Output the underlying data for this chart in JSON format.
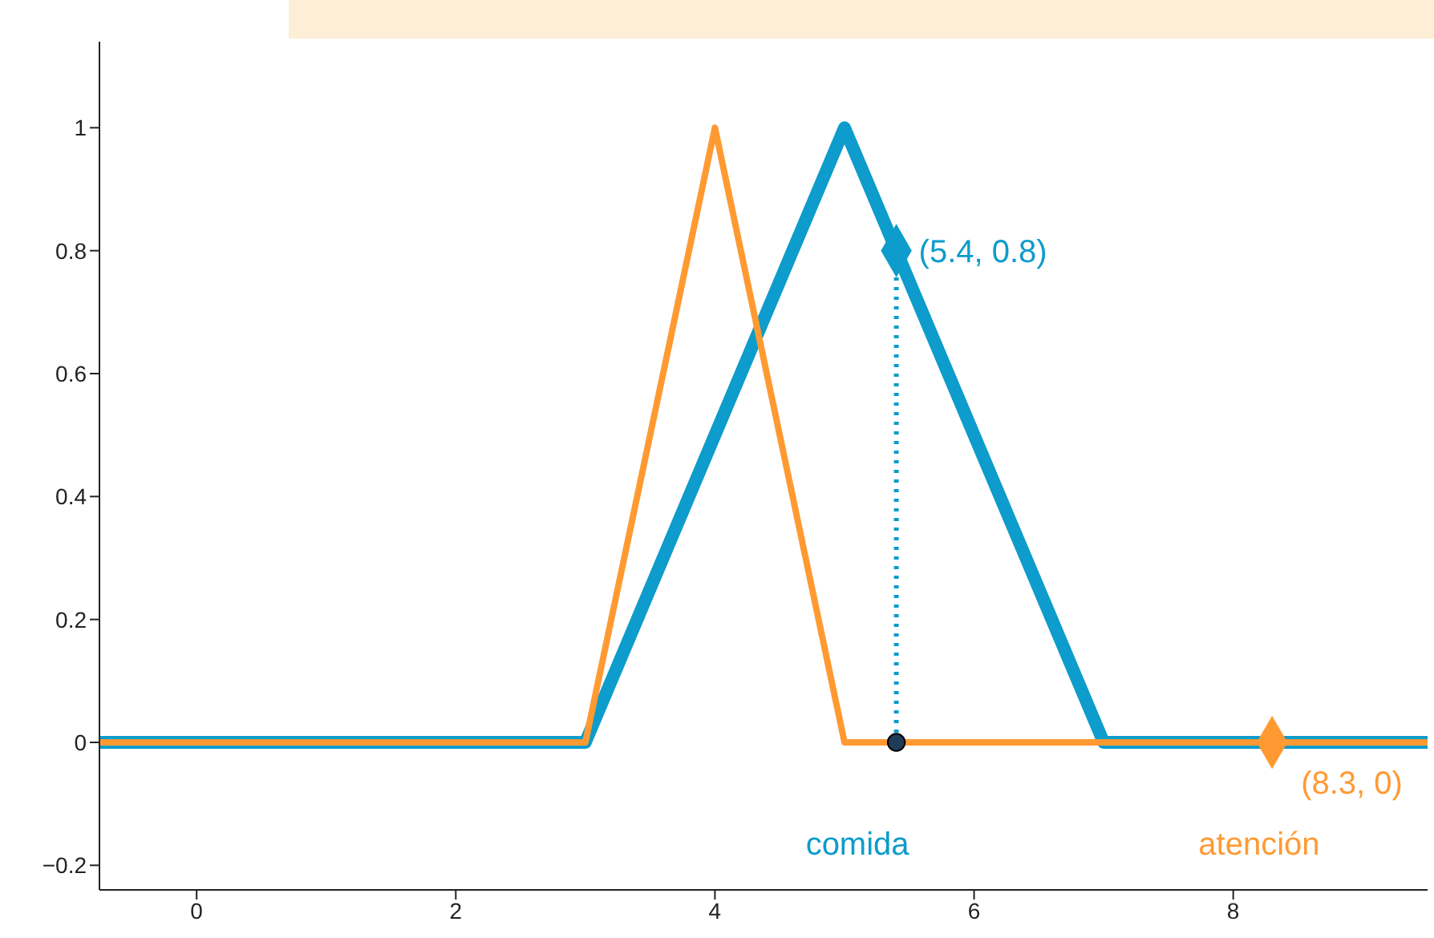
{
  "chart_data": {
    "type": "line",
    "xlim": [
      -0.75,
      9.5
    ],
    "ylim": [
      -0.24,
      1.14
    ],
    "xticks": [
      0,
      2,
      4,
      6,
      8
    ],
    "yticks": [
      {
        "value": -0.2,
        "label": "−0.2"
      },
      0,
      0.2,
      0.4,
      0.6,
      0.8,
      1
    ],
    "grid": false,
    "legend": false,
    "marker": "none",
    "series": [
      {
        "name": "comida",
        "color": "#0d9ccb",
        "x": [
          -0.75,
          3,
          5,
          7,
          9.5
        ],
        "values": [
          0,
          0,
          1,
          0,
          0
        ]
      },
      {
        "name": "atención",
        "color": "#ff9a33",
        "x": [
          -0.75,
          3,
          4,
          5,
          9.5
        ],
        "values": [
          0,
          0,
          1,
          0,
          0
        ]
      },
      {
        "type": "line",
        "line_style": "dotted",
        "color": "#0d9ccb",
        "x": [
          5.4,
          5.4
        ],
        "values": [
          0,
          0.77
        ]
      },
      {
        "type": "scatter",
        "marker": "diamond",
        "color": "#0d9ccb",
        "x": [
          5.4
        ],
        "values": [
          0.8
        ]
      },
      {
        "type": "scatter",
        "marker": "diamond",
        "color": "#ff9a33",
        "x": [
          8.3
        ],
        "values": [
          0
        ]
      },
      {
        "type": "scatter",
        "marker": "circle",
        "color": "#1f3b57",
        "x": [
          5.4
        ],
        "values": [
          0
        ]
      }
    ],
    "annotations": [
      {
        "text": "(5.4, 0.8)",
        "x": 5.4,
        "y": 0.8
      },
      {
        "text": "(8.3, 0)",
        "x": 8.3,
        "y": 0
      }
    ]
  }
}
